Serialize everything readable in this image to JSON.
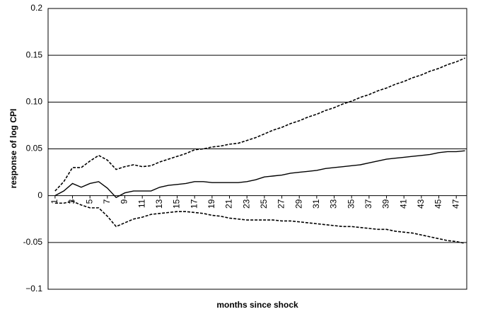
{
  "chart_data": {
    "type": "line",
    "xlabel": "months since shock",
    "ylabel": "response of log CPI",
    "x": [
      1,
      2,
      3,
      4,
      5,
      6,
      7,
      8,
      9,
      10,
      11,
      12,
      13,
      14,
      15,
      16,
      17,
      18,
      19,
      20,
      21,
      22,
      23,
      24,
      25,
      26,
      27,
      28,
      29,
      30,
      31,
      32,
      33,
      34,
      35,
      36,
      37,
      38,
      39,
      40,
      41,
      42,
      43,
      44,
      45,
      46,
      47,
      48
    ],
    "xlim": [
      0.2,
      48.2
    ],
    "xticks": [
      1,
      3,
      5,
      7,
      9,
      11,
      13,
      15,
      17,
      19,
      21,
      23,
      25,
      27,
      29,
      31,
      33,
      35,
      37,
      39,
      41,
      43,
      45,
      47
    ],
    "ylim": [
      -0.1,
      0.2
    ],
    "yticks": [
      {
        "value": -0.1,
        "label": "−0.1"
      },
      -0.05,
      0,
      0.05,
      {
        "value": 0.1,
        "label": "0.10"
      },
      0.15,
      0.2
    ],
    "grid": true,
    "series": [
      {
        "style": "solid",
        "color": "#000000",
        "values": [
          0,
          0.005,
          0.013,
          0.009,
          0.013,
          0.015,
          0.008,
          -0.002,
          0.003,
          0.005,
          0.005,
          0.005,
          0.009,
          0.011,
          0.012,
          0.013,
          0.015,
          0.015,
          0.014,
          0.014,
          0.014,
          0.014,
          0.015,
          0.017,
          0.02,
          0.021,
          0.022,
          0.024,
          0.025,
          0.026,
          0.027,
          0.029,
          0.03,
          0.031,
          0.032,
          0.033,
          0.035,
          0.037,
          0.039,
          0.04,
          0.041,
          0.042,
          0.043,
          0.044,
          0.046,
          0.047,
          0.047,
          0.048
        ]
      },
      {
        "style": "dashed",
        "color": "#000000",
        "values": [
          0.005,
          0.015,
          0.03,
          0.03,
          0.037,
          0.043,
          0.038,
          0.028,
          0.031,
          0.033,
          0.031,
          0.032,
          0.036,
          0.039,
          0.042,
          0.045,
          0.049,
          0.05,
          0.052,
          0.053,
          0.055,
          0.056,
          0.059,
          0.062,
          0.066,
          0.07,
          0.073,
          0.077,
          0.08,
          0.084,
          0.087,
          0.091,
          0.094,
          0.098,
          0.101,
          0.105,
          0.108,
          0.112,
          0.115,
          0.119,
          0.122,
          0.126,
          0.129,
          0.133,
          0.136,
          0.14,
          0.143,
          0.147
        ]
      },
      {
        "style": "dashed",
        "color": "#000000",
        "values": [
          -0.008,
          -0.008,
          -0.006,
          -0.01,
          -0.013,
          -0.013,
          -0.022,
          -0.033,
          -0.029,
          -0.025,
          -0.023,
          -0.02,
          -0.019,
          -0.018,
          -0.017,
          -0.017,
          -0.018,
          -0.019,
          -0.021,
          -0.022,
          -0.024,
          -0.025,
          -0.026,
          -0.026,
          -0.026,
          -0.026,
          -0.027,
          -0.027,
          -0.028,
          -0.029,
          -0.03,
          -0.031,
          -0.032,
          -0.033,
          -0.033,
          -0.034,
          -0.035,
          -0.036,
          -0.036,
          -0.038,
          -0.039,
          -0.04,
          -0.042,
          -0.044,
          -0.046,
          -0.048,
          -0.049,
          -0.051
        ]
      }
    ]
  }
}
